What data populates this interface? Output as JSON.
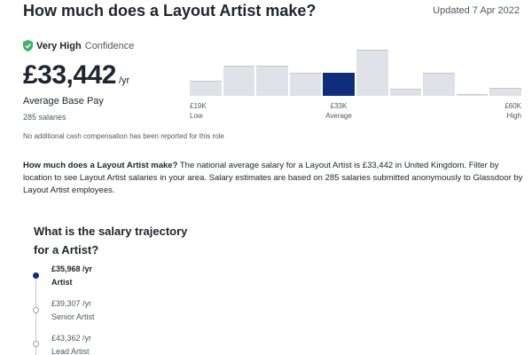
{
  "header": {
    "title": "How much does a Layout Artist make?",
    "updated": "Updated 7 Apr 2022"
  },
  "confidence": {
    "strong": "Very High",
    "rest": "Confidence",
    "icon": "shield-check-icon",
    "color": "#3fb36b"
  },
  "salary": {
    "value": "£33,442",
    "unit": "/yr",
    "label": "Average Base Pay",
    "count": "285 salaries",
    "note": "No additional cash compensation has been reported for this role"
  },
  "histogram": {
    "bar_colors": {
      "default": "#dfe1e6",
      "average": "#0f2d7d"
    },
    "relative_heights": [
      0.33,
      0.65,
      0.65,
      0.5,
      0.5,
      1.0,
      0.15,
      0.5,
      0.03,
      0.18
    ],
    "average_index": 4,
    "ticks": [
      {
        "value": "£19K",
        "label": "Low"
      },
      {
        "value": "£33K",
        "label": "Average"
      },
      {
        "value": "£60K",
        "label": "High"
      }
    ]
  },
  "description": {
    "lead": "How much does a Layout Artist make?",
    "body": " The national average salary for a Layout Artist is £33,442 in United Kingdom. Filter by location to see Layout Artist salaries in your area. Salary estimates are based on 285 salaries submitted anonymously to Glassdoor by Layout Artist employees."
  },
  "trajectory": {
    "title_line1": "What is the salary trajectory",
    "title_line2": "for a Artist?",
    "steps": [
      {
        "pay": "£35,968 /yr",
        "role": "Artist",
        "active": true
      },
      {
        "pay": "£39,307 /yr",
        "role": "Senior Artist",
        "active": false
      },
      {
        "pay": "£43,362 /yr",
        "role": "Lead Artist",
        "active": false
      }
    ]
  }
}
